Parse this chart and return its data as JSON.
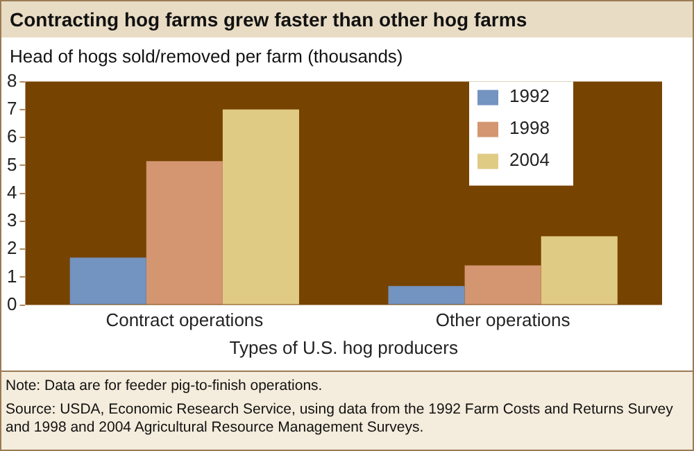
{
  "chart_data": {
    "type": "bar",
    "title": "Contracting hog farms grew faster than other hog farms",
    "ylabel": "Head of hogs sold/removed per farm (thousands)",
    "xlabel": "Types of U.S. hog producers",
    "categories": [
      "Contract operations",
      "Other operations"
    ],
    "series": [
      {
        "name": "1992",
        "color": "#7393c0",
        "values": [
          1.7,
          0.68
        ]
      },
      {
        "name": "1998",
        "color": "#d39670",
        "values": [
          5.15,
          1.42
        ]
      },
      {
        "name": "2004",
        "color": "#e0cb84",
        "values": [
          7.0,
          2.46
        ]
      }
    ],
    "ylim": [
      0,
      8
    ],
    "yticks": [
      0,
      1,
      2,
      3,
      4,
      5,
      6,
      7,
      8
    ],
    "grid": false,
    "legend": "top right",
    "annotations": [
      "Note: Data are for feeder pig-to-finish operations.",
      "Source:  USDA, Economic Research Service, using data from the 1992 Farm Costs and Returns Survey and 1998 and 2004 Agricultural Resource Management Surveys."
    ]
  }
}
